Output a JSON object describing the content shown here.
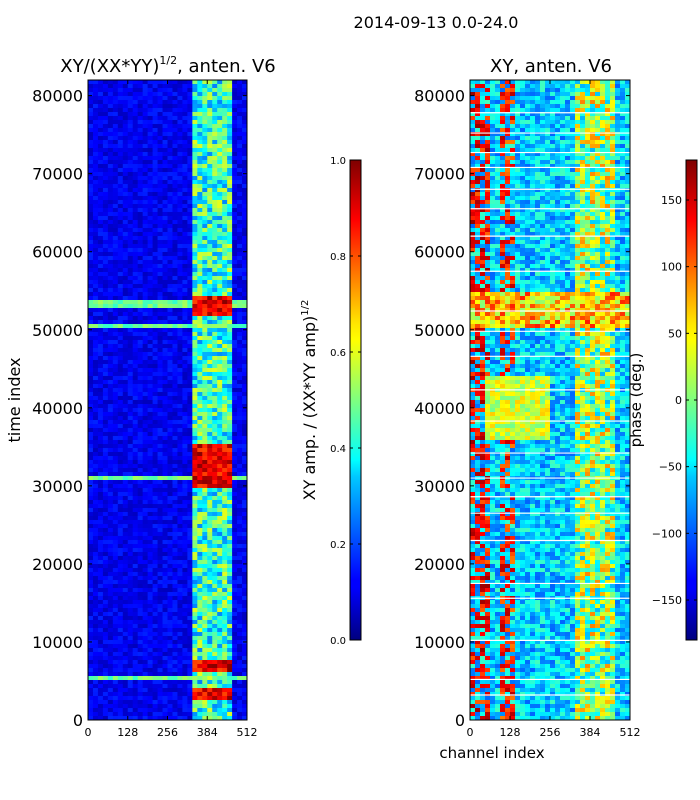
{
  "figure": {
    "suptitle": "2014-09-13 0.0-24.0"
  },
  "chart_data": [
    {
      "type": "heatmap",
      "title_main": "XY/(XX*YY)",
      "title_exp": "1/2",
      "title_tail": ", anten. V6",
      "xlabel": "",
      "ylabel": "time index",
      "xlim": [
        0,
        512
      ],
      "ylim": [
        0,
        82000
      ],
      "xticks": [
        0,
        128,
        256,
        384,
        512
      ],
      "yticks": [
        0,
        10000,
        20000,
        30000,
        40000,
        50000,
        60000,
        70000,
        80000
      ],
      "colorbar": {
        "label_main": "XY amp. / (XX*YY amp)",
        "label_exp": "1/2",
        "range": [
          0.0,
          1.0
        ],
        "ticks": [
          "0.0",
          "0.2",
          "0.4",
          "0.6",
          "0.8",
          "1.0"
        ],
        "colormap": "jet"
      },
      "features": {
        "active_channel_range": [
          330,
          470
        ],
        "block_channel_centers": [
          350,
          384,
          418,
          452
        ],
        "high_amplitude_rows": [
          3500,
          7000,
          30500,
          31800,
          33200,
          34500,
          52400,
          53400
        ],
        "bright_band_rows": [
          5200,
          31000,
          50300,
          53300
        ]
      }
    },
    {
      "type": "heatmap",
      "title": "XY, anten. V6",
      "xlabel": "channel index",
      "ylabel": "",
      "xlim": [
        0,
        512
      ],
      "ylim": [
        0,
        82000
      ],
      "xticks": [
        0,
        128,
        256,
        384,
        512
      ],
      "yticks": [
        0,
        10000,
        20000,
        30000,
        40000,
        50000,
        60000,
        70000,
        80000
      ],
      "colorbar": {
        "label": "phase (deg.)",
        "range": [
          -180,
          180
        ],
        "ticks": [
          "−150",
          "−100",
          "−50",
          "0",
          "50",
          "100",
          "150"
        ],
        "colormap": "jet"
      },
      "features": {
        "gap_rows": [
          3200,
          5200,
          10200,
          15600,
          17500,
          23000,
          26500,
          28600,
          31000,
          34200,
          38300,
          42300,
          46600,
          49800,
          52400,
          57500,
          62000,
          65500,
          68000,
          70800,
          72700,
          75200,
          77800
        ]
      }
    }
  ]
}
